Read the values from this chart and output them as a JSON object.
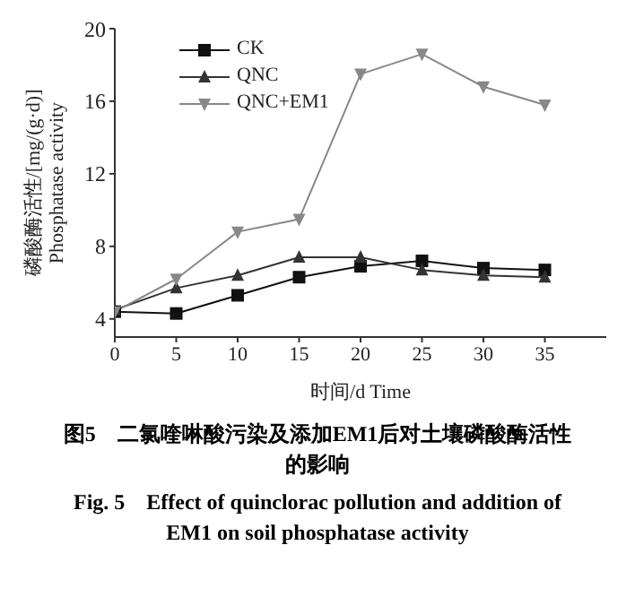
{
  "chart_data": {
    "type": "line",
    "xlabel": "时间/d Time",
    "ylabel": "磷酸酶活性/[mg/(g·d)]\nPhosphatase activity",
    "x": [
      0,
      5,
      10,
      15,
      20,
      25,
      30,
      35
    ],
    "series": [
      {
        "name": "CK",
        "color": "#111111",
        "marker": "square",
        "values": [
          4.4,
          4.3,
          5.3,
          6.3,
          6.9,
          7.2,
          6.8,
          6.7
        ]
      },
      {
        "name": "QNC",
        "color": "#333333",
        "marker": "triangle",
        "values": [
          4.5,
          5.7,
          6.4,
          7.4,
          7.4,
          6.7,
          6.4,
          6.3
        ]
      },
      {
        "name": "QNC+EM1",
        "color": "#888888",
        "marker": "triangle-down",
        "values": [
          4.4,
          6.2,
          8.8,
          9.5,
          17.5,
          18.6,
          16.8,
          15.8
        ]
      }
    ],
    "xlim": [
      0,
      40
    ],
    "xticks": [
      0,
      5,
      10,
      15,
      20,
      25,
      30,
      35
    ],
    "ylim": [
      3,
      20
    ],
    "yticks": [
      4,
      8,
      12,
      16,
      20
    ],
    "grid": false,
    "legend": "top left",
    "line_style": "solid",
    "annotations": [
      "图5　二氯喹啉酸污染及添加EM1后对土壤磷酸酶活性的影响",
      "Fig. 5　Effect of quinclorac pollution and addition of EM1 on soil phosphatase activity"
    ]
  }
}
